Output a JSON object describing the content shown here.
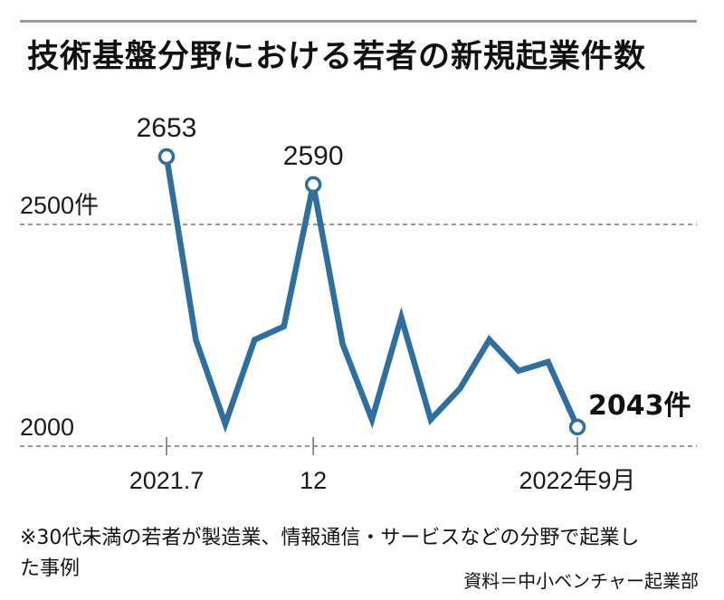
{
  "title": "技術基盤分野における若者の新規起業件数",
  "note": "※30代未満の若者が製造業、情報通信・サービスなどの分野で起業した事例",
  "source": "資料＝中小ベンチャー起業部",
  "colors": {
    "line": "#2f6fa0",
    "grid": "#777777",
    "rule": "#9a9a9a"
  },
  "chart_data": {
    "type": "line",
    "title": "技術基盤分野における若者の新規起業件数",
    "xlabel": "",
    "ylabel": "",
    "x": [
      "2021.7",
      "2021.8",
      "2021.9",
      "2021.10",
      "2021.11",
      "2021.12",
      "2022.1",
      "2022.2",
      "2022.3",
      "2022.4",
      "2022.5",
      "2022.6",
      "2022.7",
      "2022.8",
      "2022.9"
    ],
    "values": [
      2653,
      2240,
      2050,
      2240,
      2270,
      2590,
      2230,
      2060,
      2290,
      2060,
      2130,
      2240,
      2170,
      2190,
      2043
    ],
    "ylim": [
      2000,
      2500
    ],
    "y_ticks": [
      {
        "value": 2500,
        "label": "2500件"
      },
      {
        "value": 2000,
        "label": "2000"
      }
    ],
    "x_ticks": [
      {
        "index": 0,
        "label": "2021.7"
      },
      {
        "index": 5,
        "label": "12"
      },
      {
        "index": 14,
        "label": "2022年9月"
      }
    ],
    "point_labels": [
      {
        "index": 0,
        "label": "2653"
      },
      {
        "index": 5,
        "label": "2590"
      },
      {
        "index": 14,
        "label": "2043件"
      }
    ],
    "grid": "dashed horizontal"
  }
}
